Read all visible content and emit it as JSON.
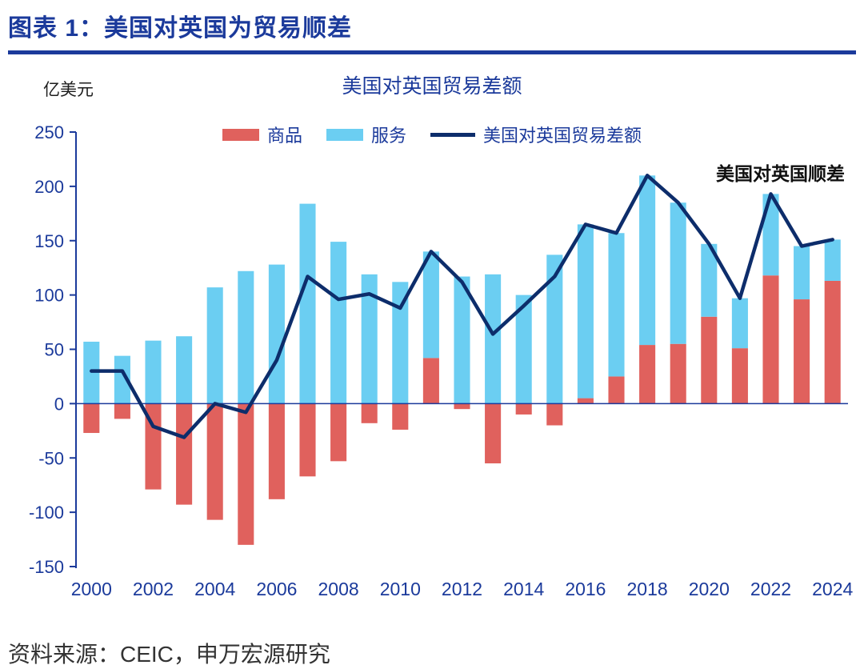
{
  "colors": {
    "brand_blue": "#1b3a9b",
    "goods_red": "#e0615d",
    "services_blue": "#6bcef2",
    "line_navy": "#0d2d6b"
  },
  "header": {
    "title": "图表 1：美国对英国为贸易顺差"
  },
  "chart": {
    "unit_label": "亿美元",
    "title": "美国对英国贸易差额",
    "annotation": "美国对英国顺差",
    "legend": [
      {
        "label": "商品",
        "type": "bar",
        "color": "#e0615d"
      },
      {
        "label": "服务",
        "type": "bar",
        "color": "#6bcef2"
      },
      {
        "label": "美国对英国贸易差额",
        "type": "line",
        "color": "#0d2d6b"
      }
    ]
  },
  "footer": {
    "source": "资料来源：CEIC，申万宏源研究"
  },
  "chart_data": {
    "type": "bar",
    "composition": "stacked bars (goods + services) with total-balance line overlay",
    "title": "美国对英国贸易差额",
    "ylabel": "亿美元",
    "categories": [
      2000,
      2001,
      2002,
      2003,
      2004,
      2005,
      2006,
      2007,
      2008,
      2009,
      2010,
      2011,
      2012,
      2013,
      2014,
      2015,
      2016,
      2017,
      2018,
      2019,
      2020,
      2021,
      2022,
      2023,
      2024
    ],
    "series": [
      {
        "name": "商品",
        "type": "bar",
        "color": "#e0615d",
        "values": [
          -27,
          -14,
          -79,
          -93,
          -107,
          -130,
          -88,
          -67,
          -53,
          -18,
          -24,
          42,
          -5,
          -55,
          -10,
          -20,
          5,
          25,
          54,
          55,
          80,
          51,
          118,
          96,
          113
        ]
      },
      {
        "name": "服务",
        "type": "bar",
        "color": "#6bcef2",
        "values": [
          57,
          44,
          58,
          62,
          107,
          122,
          128,
          184,
          149,
          119,
          112,
          98,
          117,
          119,
          100,
          137,
          160,
          132,
          156,
          130,
          67,
          46,
          75,
          49,
          38
        ]
      },
      {
        "name": "美国对英国贸易差额",
        "type": "line",
        "color": "#0d2d6b",
        "values": [
          30,
          30,
          -21,
          -31,
          0,
          -8,
          40,
          117,
          96,
          101,
          88,
          140,
          112,
          64,
          90,
          117,
          165,
          157,
          210,
          185,
          147,
          97,
          193,
          145,
          151
        ]
      }
    ],
    "ylim": [
      -150,
      250
    ],
    "ytick_step": 50,
    "xtick_years": [
      2000,
      2002,
      2004,
      2006,
      2008,
      2010,
      2012,
      2014,
      2016,
      2018,
      2020,
      2022,
      2024
    ],
    "legend_position": "top",
    "grid": false
  }
}
